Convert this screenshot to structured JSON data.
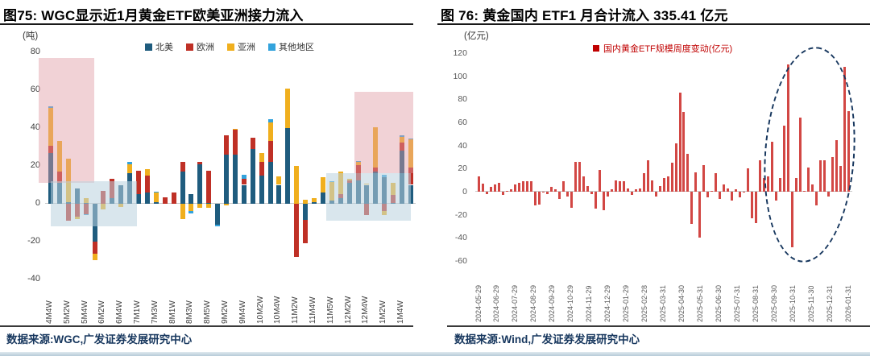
{
  "figure75": {
    "title": "图75: WGC显示近1月黄金ETF欧美亚洲接力流入",
    "unit": "(吨)",
    "source": "数据来源:WGC,广发证券发展研究中心",
    "legend": [
      {
        "label": "北美",
        "color": "#1F5C7E"
      },
      {
        "label": "欧洲",
        "color": "#BF3026"
      },
      {
        "label": "亚洲",
        "color": "#F0AF1E"
      },
      {
        "label": "其他地区",
        "color": "#33A3DC"
      }
    ]
  },
  "figure76": {
    "title": "图 76: 黄金国内 ETF1 月合计流入 335.41 亿元",
    "unit": "(亿元)",
    "source": "数据来源:Wind,广发证券发展研究中心",
    "legend_label": "国内黄金ETF规模周度变动(亿元)",
    "legend_color": "#C00000",
    "monthly_inflow_highlight": "335.41"
  },
  "chart_data": [
    {
      "type": "bar",
      "subtype": "stacked-weekly",
      "title": "WGC显示近1月黄金ETF欧美亚洲接力流入",
      "ylabel": "吨",
      "ylim": [
        -40,
        80
      ],
      "y_ticks": [
        80,
        60,
        40,
        20,
        0,
        -20,
        -40
      ],
      "categories": [
        "4M4W",
        "5M2W",
        "5M4W",
        "6M2W",
        "6M4W",
        "7M1W",
        "7M3W",
        "8M1W",
        "8M3W",
        "8M5W",
        "9M2W",
        "9M4W",
        "10M2W",
        "10M4W",
        "11M2W",
        "11M4W",
        "11M5W",
        "12M2W",
        "12M4W",
        "1M2W",
        "1M4W"
      ],
      "legend_position": "top",
      "grid": false,
      "series": [
        {
          "name": "北美",
          "color": "#1F5C7E",
          "values": [
            27,
            11,
            1,
            8,
            0.5,
            -20,
            0,
            3,
            10,
            16,
            5,
            6,
            1,
            0,
            0,
            17,
            5,
            21,
            0.5,
            -11,
            26,
            26,
            10,
            29,
            15,
            22,
            10,
            40,
            0,
            -8.5,
            1,
            6,
            1.5,
            3,
            11,
            12.5,
            10,
            17,
            14,
            0.5,
            28,
            10
          ]
        },
        {
          "name": "欧洲",
          "color": "#BF3026",
          "values": [
            3.5,
            6,
            -9,
            -7,
            -5.5,
            -6.5,
            7,
            10,
            0,
            0,
            12.5,
            9,
            0,
            3.5,
            6,
            5,
            0,
            1,
            17,
            0,
            10,
            13,
            3,
            6,
            7,
            11,
            0,
            0,
            -28,
            -12.5,
            0,
            0,
            0,
            2,
            1.5,
            8,
            -6,
            2,
            -4,
            4,
            4.5,
            9
          ]
        },
        {
          "name": "亚洲",
          "color": "#F0AF1E",
          "values": [
            20,
            16,
            23,
            -1,
            2.5,
            -3.5,
            -3,
            0,
            -1.5,
            5,
            0,
            3.5,
            5,
            0,
            0,
            -8,
            -4,
            -2,
            -2,
            0,
            -0.7,
            0.5,
            0,
            0,
            5,
            10,
            4.5,
            21,
            20,
            2,
            2,
            8,
            10,
            12,
            0.5,
            1.5,
            0.5,
            21.5,
            -2,
            6.5,
            3,
            15
          ]
        },
        {
          "name": "其他地区",
          "color": "#33A3DC",
          "values": [
            1,
            0,
            0,
            0,
            -0.5,
            0,
            0,
            0,
            0,
            1,
            0,
            0,
            0.5,
            0,
            0,
            0,
            -1,
            0,
            0,
            -1,
            0,
            0,
            2.5,
            0,
            0,
            1.5,
            0,
            0,
            0,
            0,
            0,
            0,
            0.5,
            0,
            0,
            0.5,
            0,
            0,
            1.5,
            0,
            0.5,
            0.5
          ]
        }
      ],
      "highlights": [
        {
          "kind": "pink-box-early",
          "color": "rgba(224,156,163,0.45)",
          "bar_from": -1.35,
          "bar_to": 5.0,
          "value_from": 11,
          "value_to": 77
        },
        {
          "kind": "blue-box-early",
          "color": "rgba(186,209,222,0.55)",
          "bar_from": 0,
          "bar_to": 9.8,
          "value_from": -12,
          "value_to": 12
        },
        {
          "kind": "blue-box-recent",
          "color": "rgba(186,209,222,0.55)",
          "bar_from": 31.4,
          "bar_to": 41.0,
          "value_from": -9,
          "value_to": 16
        },
        {
          "kind": "pink-box-recent",
          "color": "rgba(224,156,163,0.45)",
          "bar_from": 34.6,
          "bar_to": 41.3,
          "value_from": 16,
          "value_to": 59
        }
      ]
    },
    {
      "type": "bar",
      "subtype": "single-series-weekly",
      "title": "黄金国内ETF1月合计流入335.41亿元",
      "ylabel": "亿元",
      "ylim": [
        -60,
        120
      ],
      "y_ticks": [
        120,
        100,
        80,
        60,
        40,
        20,
        0,
        -20,
        -40,
        -60
      ],
      "bar_color": "#D24744",
      "legend_entry": "国内黄金ETF规模周度变动(亿元)",
      "x_labels": [
        "2024-05-29",
        "2024-06-29",
        "2024-07-29",
        "2024-08-29",
        "2024-09-29",
        "2024-10-29",
        "2024-11-29",
        "2024-12-29",
        "2025-01-29",
        "2025-02-28",
        "2025-03-31",
        "2025-04-30",
        "2025-05-31",
        "2025-06-30",
        "2025-07-31",
        "2025-08-31",
        "2025-09-30",
        "2025-10-31",
        "2025-11-30",
        "2025-12-31",
        "2026-01-31"
      ],
      "values": [
        13,
        7,
        -2,
        4,
        6,
        8,
        -3,
        1,
        2,
        6,
        8,
        9,
        9,
        9,
        -12,
        -11,
        -1,
        -2,
        4,
        2,
        -6,
        9,
        -4,
        -14,
        26,
        26,
        13,
        5,
        -2,
        -15,
        19,
        -16,
        -4,
        2,
        10,
        9,
        9,
        3,
        -3,
        2,
        3,
        16,
        27,
        10,
        -4,
        5,
        12,
        13,
        25,
        42,
        86,
        69,
        33,
        -28,
        17,
        -40,
        23,
        -5,
        1,
        16,
        -6,
        6,
        3,
        -8,
        2,
        -5,
        -1,
        20,
        -23,
        -27,
        27,
        12,
        13,
        43,
        -8,
        12,
        57,
        110,
        -48,
        12,
        64,
        1,
        21,
        6,
        -12,
        27,
        27,
        -4,
        30,
        45,
        22,
        108,
        70
      ],
      "annotation": {
        "kind": "dashed-ellipse",
        "color": "#17375E",
        "covers": "2025-09 至 2026-01 流入放量区间"
      },
      "grid": false
    }
  ]
}
